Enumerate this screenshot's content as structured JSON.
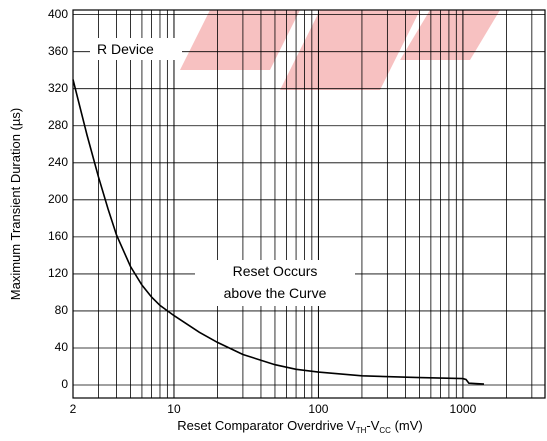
{
  "chart_data": {
    "type": "line",
    "y_label": "Maximum Transient Duration (µs)",
    "x_label": {
      "prefix": "Reset Comparator Overdrive V",
      "sub1": "TH",
      "mid": "-V",
      "sub2": "CC",
      "suffix": " (mV)"
    },
    "annotations": [
      "R Device",
      "Reset Occurs",
      "above the Curve"
    ],
    "x_scale": "log",
    "xlim": [
      2,
      3700
    ],
    "xticks": [
      2,
      10,
      100,
      1000
    ],
    "xminor": [
      3,
      4,
      5,
      6,
      7,
      8,
      9,
      20,
      30,
      40,
      50,
      60,
      70,
      80,
      90,
      200,
      300,
      400,
      500,
      600,
      700,
      800,
      900,
      2000,
      3000
    ],
    "ylim": [
      -14,
      405
    ],
    "yticks": [
      0,
      40,
      80,
      120,
      160,
      200,
      240,
      280,
      320,
      360,
      400
    ],
    "grid": true,
    "color": "#000000",
    "x": [
      2,
      2.5,
      3,
      3.5,
      4,
      5,
      6,
      7,
      8,
      10,
      15,
      20,
      30,
      50,
      70,
      100,
      200,
      500,
      1000,
      1050,
      1100,
      1400
    ],
    "values": [
      330,
      270,
      225,
      190,
      162,
      128,
      108,
      95,
      86,
      75,
      57,
      46,
      33,
      22,
      17,
      14,
      10,
      8,
      7,
      6,
      2,
      1
    ]
  }
}
